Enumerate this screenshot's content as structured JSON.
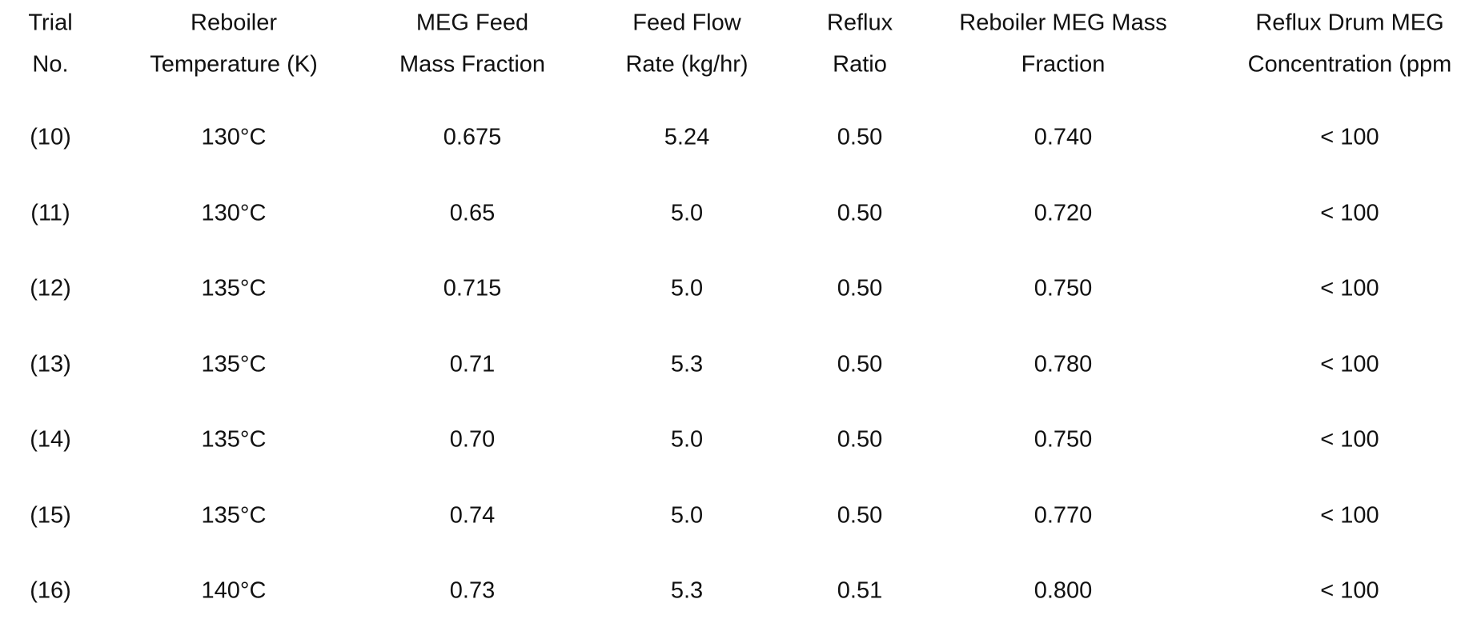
{
  "table": {
    "headers": [
      [
        "Trial",
        "No."
      ],
      [
        "Reboiler",
        "Temperature (K)"
      ],
      [
        "MEG Feed",
        "Mass Fraction"
      ],
      [
        "Feed Flow",
        "Rate (kg/hr)"
      ],
      [
        "Reflux",
        "Ratio"
      ],
      [
        "Reboiler MEG Mass",
        "Fraction"
      ],
      [
        "Reflux Drum MEG",
        "Concentration (ppm"
      ]
    ],
    "rows": [
      [
        "(10)",
        "130°C",
        "0.675",
        "5.24",
        "0.50",
        "0.740",
        "< 100"
      ],
      [
        "(11)",
        "130°C",
        "0.65",
        "5.0",
        "0.50",
        "0.720",
        "< 100"
      ],
      [
        "(12)",
        "135°C",
        "0.715",
        "5.0",
        "0.50",
        "0.750",
        "< 100"
      ],
      [
        "(13)",
        "135°C",
        "0.71",
        "5.3",
        "0.50",
        "0.780",
        "< 100"
      ],
      [
        "(14)",
        "135°C",
        "0.70",
        "5.0",
        "0.50",
        "0.750",
        "< 100"
      ],
      [
        "(15)",
        "135°C",
        "0.74",
        "5.0",
        "0.50",
        "0.770",
        "< 100"
      ],
      [
        "(16)",
        "140°C",
        "0.73",
        "5.3",
        "0.51",
        "0.800",
        "< 100"
      ]
    ]
  }
}
